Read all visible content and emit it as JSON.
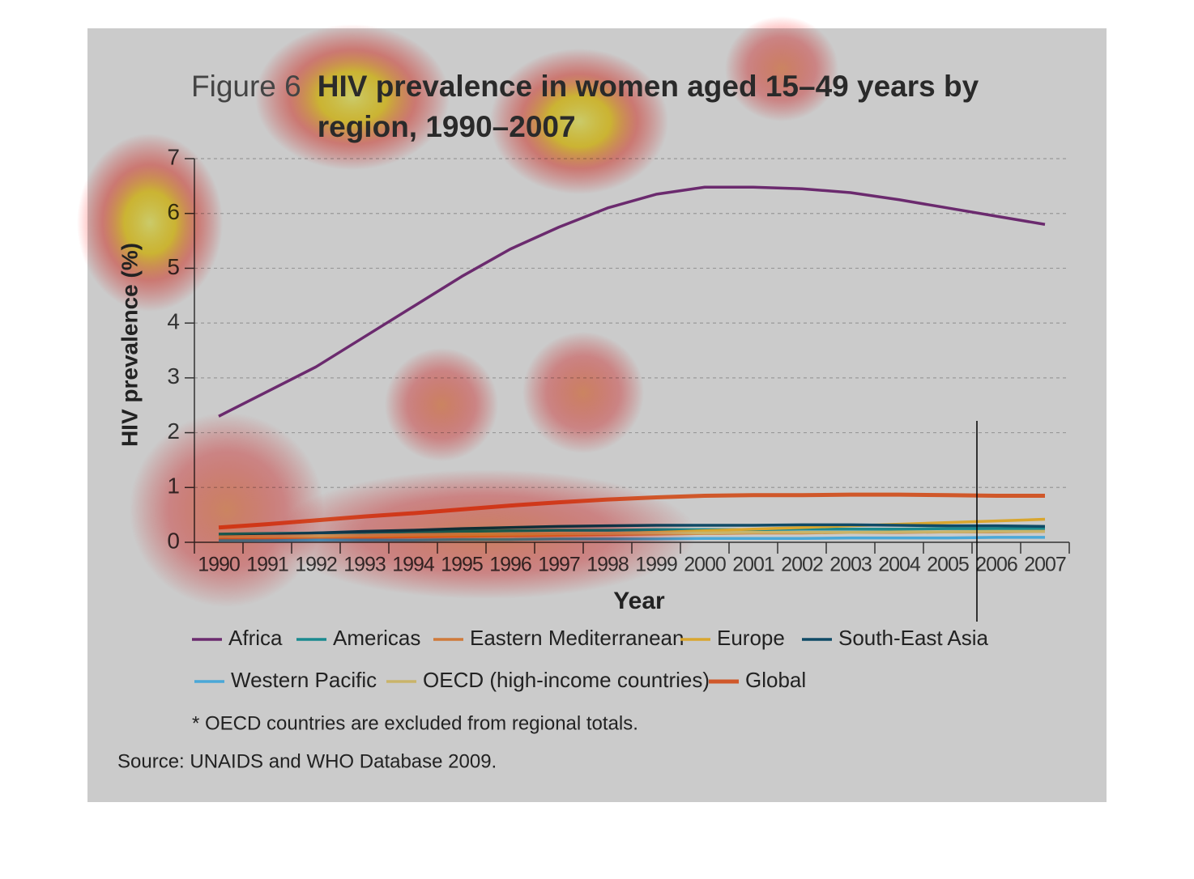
{
  "chart_data": {
    "type": "line",
    "label": "Figure 6",
    "title": "HIV prevalence in women aged 15–49 years by region, 1990–2007",
    "x_label": "Year",
    "y_label": "HIV prevalence (%)",
    "categories": [
      "1990",
      "1991",
      "1992",
      "1993",
      "1994",
      "1995",
      "1996",
      "1997",
      "1998",
      "1999",
      "2000",
      "2001",
      "2002",
      "2003",
      "2004",
      "2005",
      "2006",
      "2007"
    ],
    "ylim": [
      0,
      7
    ],
    "yticks": [
      0,
      1,
      2,
      3,
      4,
      5,
      6,
      7
    ],
    "grid": true,
    "series": [
      {
        "name": "Africa",
        "color": "#6b2a6e",
        "values": [
          2.3,
          2.75,
          3.2,
          3.75,
          4.3,
          4.85,
          5.35,
          5.75,
          6.1,
          6.35,
          6.48,
          6.48,
          6.45,
          6.38,
          6.25,
          6.1,
          5.95,
          5.8
        ]
      },
      {
        "name": "Americas",
        "color": "#1a8a8f",
        "values": [
          0.15,
          0.16,
          0.17,
          0.18,
          0.19,
          0.2,
          0.21,
          0.22,
          0.22,
          0.23,
          0.23,
          0.23,
          0.24,
          0.24,
          0.24,
          0.25,
          0.25,
          0.25
        ]
      },
      {
        "name": "Eastern Mediterranean",
        "color": "#d07a3a",
        "values": [
          0.06,
          0.07,
          0.08,
          0.09,
          0.1,
          0.11,
          0.12,
          0.13,
          0.14,
          0.15,
          0.16,
          0.17,
          0.17,
          0.18,
          0.18,
          0.19,
          0.19,
          0.2
        ]
      },
      {
        "name": "Europe",
        "color": "#d9a62e",
        "values": [
          0.1,
          0.1,
          0.11,
          0.11,
          0.12,
          0.13,
          0.14,
          0.15,
          0.16,
          0.18,
          0.21,
          0.24,
          0.27,
          0.3,
          0.33,
          0.36,
          0.39,
          0.42
        ]
      },
      {
        "name": "South-East Asia",
        "color": "#0f4a66",
        "values": [
          0.1,
          0.13,
          0.17,
          0.2,
          0.22,
          0.25,
          0.27,
          0.29,
          0.3,
          0.31,
          0.31,
          0.31,
          0.32,
          0.32,
          0.31,
          0.3,
          0.3,
          0.29
        ]
      },
      {
        "name": "Western Pacific",
        "color": "#4aa8d8",
        "values": [
          0.03,
          0.03,
          0.04,
          0.04,
          0.04,
          0.05,
          0.05,
          0.06,
          0.06,
          0.06,
          0.07,
          0.07,
          0.07,
          0.08,
          0.08,
          0.08,
          0.09,
          0.09
        ]
      },
      {
        "name": "OECD (high-income countries)",
        "color": "#c9b46a",
        "values": [
          0.1,
          0.11,
          0.12,
          0.13,
          0.14,
          0.15,
          0.15,
          0.16,
          0.16,
          0.17,
          0.17,
          0.18,
          0.18,
          0.18,
          0.19,
          0.19,
          0.2,
          0.2
        ]
      },
      {
        "name": "Global",
        "color": "#d0582a",
        "values": [
          0.27,
          0.33,
          0.4,
          0.47,
          0.53,
          0.6,
          0.67,
          0.73,
          0.78,
          0.82,
          0.85,
          0.86,
          0.86,
          0.87,
          0.87,
          0.86,
          0.85,
          0.85
        ]
      }
    ],
    "footnote": "* OECD countries are excluded from regional totals.",
    "source": "Source: UNAIDS and WHO Database 2009."
  }
}
